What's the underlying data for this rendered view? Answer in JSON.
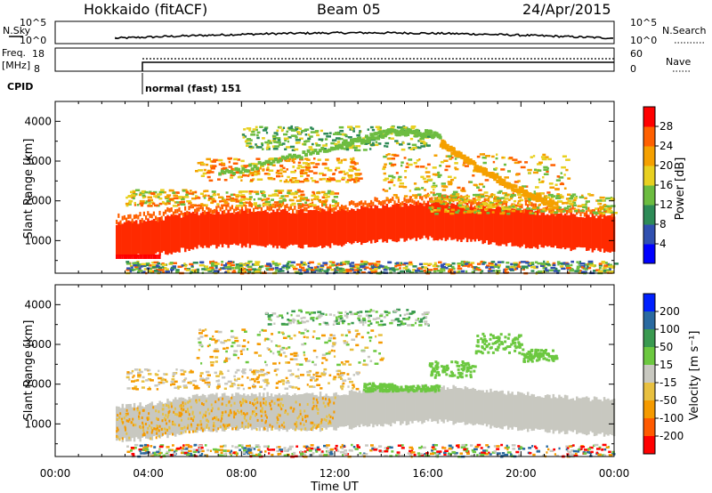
{
  "header": {
    "station": "Hokkaido (fitACF)",
    "beam": "Beam 05",
    "date": "24/Apr/2015"
  },
  "noise_panel": {
    "left_label": "N.Sky",
    "left_ticks": [
      "10^5",
      "10^0"
    ],
    "right_label": "N.Search",
    "right_ticks": [
      "10^5",
      "10^0"
    ]
  },
  "freq_panel": {
    "left_label_1": "Freq.",
    "left_label_2": "[MHz]",
    "left_ticks": [
      "18",
      "8"
    ],
    "right_label": "Nave",
    "right_ticks": [
      "60",
      "0"
    ]
  },
  "cpid": {
    "label": "CPID",
    "text": "normal (fast) 151"
  },
  "colors": {
    "power_scale": [
      "#0000ff",
      "#3050b0",
      "#2e8b57",
      "#6cbc40",
      "#e8d020",
      "#f5a000",
      "#ff6000",
      "#ff0000"
    ],
    "velocity_scale": [
      "#ff0000",
      "#ff5a00",
      "#f59a00",
      "#e8c040",
      "#c8c8c0",
      "#6cc840",
      "#3a9a50",
      "#2a6aa0",
      "#0020ff"
    ],
    "power_bg": "#ff2a00",
    "velocity_bg": "#c8c8c0"
  },
  "chart_data": [
    {
      "type": "heatmap",
      "panel": "power",
      "ylabel": "Slant Range [km]",
      "yticks": [
        "1000",
        "2000",
        "3000",
        "4000"
      ],
      "ylim": [
        180,
        4500
      ],
      "xlim": [
        0,
        24
      ],
      "colorbar_label": "Power [dB]",
      "colorbar_ticks": [
        "4",
        "8",
        "12",
        "16",
        "20",
        "24",
        "28"
      ],
      "colorbar_range": [
        0,
        32
      ],
      "data_start_hour": 2.6,
      "main_band_center_km": [
        [
          2.6,
          1000
        ],
        [
          4,
          1050
        ],
        [
          6,
          1250
        ],
        [
          8,
          1300
        ],
        [
          10,
          1280
        ],
        [
          12,
          1300
        ],
        [
          13.5,
          1400
        ],
        [
          15,
          1450
        ],
        [
          16,
          1500
        ],
        [
          17.5,
          1450
        ],
        [
          19,
          1350
        ],
        [
          21,
          1250
        ],
        [
          22.5,
          1200
        ],
        [
          24,
          1150
        ]
      ],
      "main_band_halfwidth_km": 450,
      "notes_series": [
        {
          "x": [
            7,
            12,
            14.5,
            16.5
          ],
          "y": [
            2700,
            3400,
            3800,
            3700
          ],
          "value_db": 14
        },
        {
          "x": [
            16.5,
            18,
            19.5,
            21.5
          ],
          "y": [
            3500,
            2900,
            2400,
            1900
          ],
          "value_db": 18
        }
      ]
    },
    {
      "type": "heatmap",
      "panel": "velocity",
      "ylabel": "Slant Range [km]",
      "yticks": [
        "1000",
        "2000",
        "3000",
        "4000"
      ],
      "ylim": [
        180,
        4500
      ],
      "xlim": [
        0,
        24
      ],
      "colorbar_label": "Velocity [m s⁻¹]",
      "colorbar_ticks": [
        "200",
        "100",
        "50",
        "15",
        "-15",
        "-50",
        "-100",
        "-200"
      ],
      "xticks": [
        "00:00",
        "04:00",
        "08:00",
        "12:00",
        "16:00",
        "20:00",
        "00:00"
      ],
      "xlabel": "Time UT"
    }
  ]
}
